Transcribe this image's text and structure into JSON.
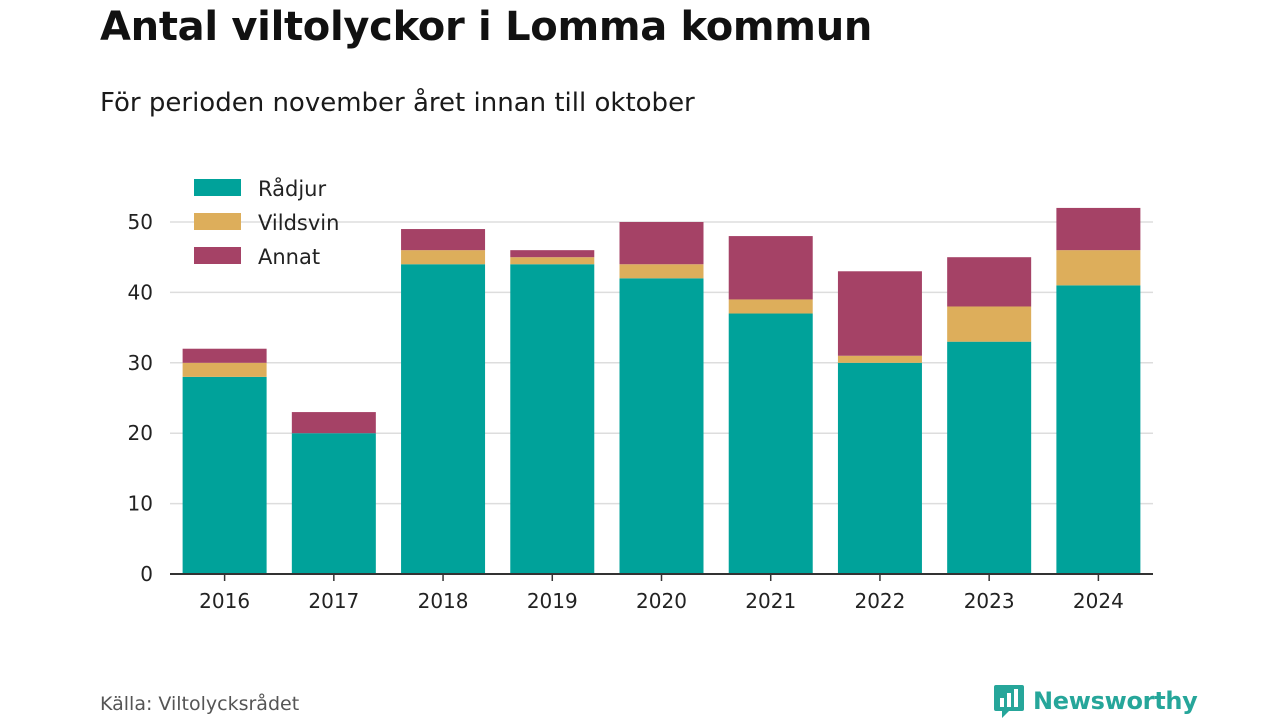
{
  "title": "Antal viltolyckor i Lomma kommun",
  "subtitle": "För perioden november året innan till oktober",
  "source": "Källa: Viltolycksrådet",
  "brand": "Newsworthy",
  "colors": {
    "radjur": "#00a29a",
    "vildsvin": "#ddae5b",
    "annat": "#a54266",
    "grid": "#dddddd",
    "axis": "#333333",
    "brand": "#26a69a"
  },
  "chart_data": {
    "type": "bar",
    "stacked": true,
    "categories": [
      "2016",
      "2017",
      "2018",
      "2019",
      "2020",
      "2021",
      "2022",
      "2023",
      "2024"
    ],
    "series": [
      {
        "name": "Rådjur",
        "color": "#00a29a",
        "values": [
          28,
          20,
          44,
          44,
          42,
          37,
          30,
          33,
          41
        ]
      },
      {
        "name": "Vildsvin",
        "color": "#ddae5b",
        "values": [
          2,
          0,
          2,
          1,
          2,
          2,
          1,
          5,
          5
        ]
      },
      {
        "name": "Annat",
        "color": "#a54266",
        "values": [
          2,
          3,
          3,
          1,
          6,
          9,
          12,
          7,
          6
        ]
      }
    ],
    "yticks": [
      0,
      10,
      20,
      30,
      40,
      50
    ],
    "ylim": [
      0,
      55
    ],
    "grid": true,
    "legend_position": "top-left"
  }
}
